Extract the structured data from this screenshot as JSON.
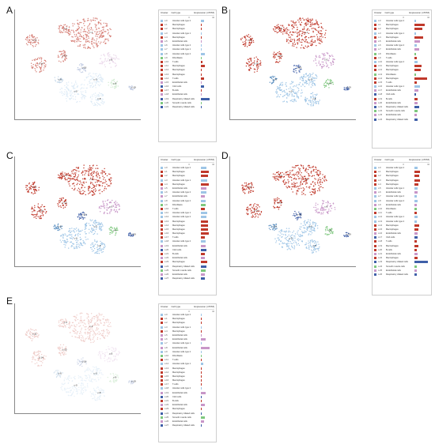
{
  "panels": [
    {
      "letter": "A",
      "legend_header": {
        "cluster": "Cluster",
        "cell_type": "Cell type",
        "expression": "Expression (nTPM)",
        "scale_min": "0",
        "scale_max": "10"
      },
      "rows": [
        {
          "id": "c-0",
          "type": "Alveolar cells type 2",
          "color": "#9ec5e6",
          "val": 0.25
        },
        {
          "id": "c-1",
          "type": "Macrophages",
          "color": "#c0392b",
          "val": 0.02
        },
        {
          "id": "c-2",
          "type": "Macrophages",
          "color": "#c0392b",
          "val": 0.02
        },
        {
          "id": "c-3",
          "type": "Alveolar cells type 1",
          "color": "#9ec5e6",
          "val": 0.03
        },
        {
          "id": "c-4",
          "type": "Macrophages",
          "color": "#c0392b",
          "val": 0.02
        },
        {
          "id": "c-5",
          "type": "Endothelial cells",
          "color": "#c896c8",
          "val": 0.05
        },
        {
          "id": "c-6",
          "type": "Alveolar cells type 2",
          "color": "#9ec5e6",
          "val": 0.02
        },
        {
          "id": "c-7",
          "type": "Alveolar cells type 1",
          "color": "#9ec5e6",
          "val": 0.03
        },
        {
          "id": "c-8",
          "type": "Alveolar cells type 2",
          "color": "#9ec5e6",
          "val": 0.28
        },
        {
          "id": "c-9",
          "type": "Fibroblasts",
          "color": "#7ec87e",
          "val": 0.03
        },
        {
          "id": "c-10",
          "type": "T-cells",
          "color": "#c0392b",
          "val": 0.12
        },
        {
          "id": "c-11",
          "type": "Macrophages",
          "color": "#c0392b",
          "val": 0.28
        },
        {
          "id": "c-12",
          "type": "Macrophages",
          "color": "#c0392b",
          "val": 0.02
        },
        {
          "id": "c-13",
          "type": "Macrophages",
          "color": "#c0392b",
          "val": 0.02
        },
        {
          "id": "c-14",
          "type": "T-cells",
          "color": "#c0392b",
          "val": 0.22
        },
        {
          "id": "c-15",
          "type": "Endothelial cells",
          "color": "#c896c8",
          "val": 0.02
        },
        {
          "id": "c-16",
          "type": "Club cells",
          "color": "#3f5fa8",
          "val": 0.25
        },
        {
          "id": "c-17",
          "type": "B-cells",
          "color": "#c0392b",
          "val": 0.03
        },
        {
          "id": "c-18",
          "type": "Endothelial cells",
          "color": "#c896c8",
          "val": 0.02
        },
        {
          "id": "c-19",
          "type": "Respiratory ciliated cells",
          "color": "#3f5fa8",
          "val": 0.62
        },
        {
          "id": "c-20",
          "type": "Smooth muscle cells",
          "color": "#7ec87e",
          "val": 0.02
        },
        {
          "id": "c-21",
          "type": "Respiratory ciliated cells",
          "color": "#3f5fa8",
          "val": 0.04
        }
      ]
    },
    {
      "letter": "B",
      "legend_header": {
        "cluster": "Cluster",
        "cell_type": "Cell type",
        "expression": "Expression (nTPM)",
        "scale_min": "0",
        "scale_max": "10"
      },
      "rows": [
        {
          "id": "c-0",
          "type": "Alveolar cells type 2",
          "color": "#9ec5e6",
          "val": 0.12
        },
        {
          "id": "c-1",
          "type": "Macrophages",
          "color": "#c0392b",
          "val": 0.7
        },
        {
          "id": "c-2",
          "type": "Macrophages",
          "color": "#c0392b",
          "val": 0.55
        },
        {
          "id": "c-3",
          "type": "Alveolar cells type 1",
          "color": "#9ec5e6",
          "val": 0.1
        },
        {
          "id": "c-4",
          "type": "Macrophages",
          "color": "#c0392b",
          "val": 0.6
        },
        {
          "id": "c-5",
          "type": "Endothelial cells",
          "color": "#c896c8",
          "val": 0.35
        },
        {
          "id": "c-6",
          "type": "Alveolar cells type 2",
          "color": "#9ec5e6",
          "val": 0.15
        },
        {
          "id": "c-7",
          "type": "Endothelial cells",
          "color": "#c896c8",
          "val": 0.3
        },
        {
          "id": "c-8",
          "type": "Fibroblasts",
          "color": "#7ec87e",
          "val": 0.1
        },
        {
          "id": "c-9",
          "type": "T-cells",
          "color": "#c0392b",
          "val": 0.18
        },
        {
          "id": "c-10",
          "type": "Alveolar cells type 2",
          "color": "#9ec5e6",
          "val": 0.2
        },
        {
          "id": "c-11",
          "type": "Macrophages",
          "color": "#c0392b",
          "val": 0.45
        },
        {
          "id": "c-12",
          "type": "Macrophages",
          "color": "#c0392b",
          "val": 0.4
        },
        {
          "id": "c-13",
          "type": "Fibroblasts",
          "color": "#7ec87e",
          "val": 0.08
        },
        {
          "id": "c-14",
          "type": "Macrophages",
          "color": "#c0392b",
          "val": 0.85
        },
        {
          "id": "c-15",
          "type": "T-cells",
          "color": "#c0392b",
          "val": 0.15
        },
        {
          "id": "c-16",
          "type": "Alveolar cells type 1",
          "color": "#9ec5e6",
          "val": 0.35
        },
        {
          "id": "c-17",
          "type": "Endothelial cells",
          "color": "#c896c8",
          "val": 0.25
        },
        {
          "id": "c-18",
          "type": "Club cells",
          "color": "#3f5fa8",
          "val": 0.12
        },
        {
          "id": "c-19",
          "type": "B-cells",
          "color": "#c0392b",
          "val": 0.2
        },
        {
          "id": "c-20",
          "type": "Endothelial cells",
          "color": "#c896c8",
          "val": 0.22
        },
        {
          "id": "c-21",
          "type": "Respiratory ciliated cells",
          "color": "#3f5fa8",
          "val": 0.3
        },
        {
          "id": "c-22",
          "type": "Smooth muscle cells",
          "color": "#7ec87e",
          "val": 0.2
        },
        {
          "id": "c-23",
          "type": "Endothelial cells",
          "color": "#c896c8",
          "val": 0.15
        },
        {
          "id": "c-24",
          "type": "Respiratory ciliated cells",
          "color": "#3f5fa8",
          "val": 0.2
        }
      ]
    },
    {
      "letter": "C",
      "legend_header": {
        "cluster": "Cluster",
        "cell_type": "Cell type",
        "expression": "Expression (nTPM)",
        "scale_min": "0",
        "scale_max": "10"
      },
      "rows": [
        {
          "id": "c-0",
          "type": "Alveolar cells type 2",
          "color": "#9ec5e6",
          "val": 0.4
        },
        {
          "id": "c-1",
          "type": "Macrophages",
          "color": "#c0392b",
          "val": 0.6
        },
        {
          "id": "c-2",
          "type": "Macrophages",
          "color": "#c0392b",
          "val": 0.55
        },
        {
          "id": "c-3",
          "type": "Alveolar cells type 1",
          "color": "#9ec5e6",
          "val": 0.45
        },
        {
          "id": "c-4",
          "type": "Macrophages",
          "color": "#c0392b",
          "val": 0.6
        },
        {
          "id": "c-5",
          "type": "Endothelial cells",
          "color": "#c896c8",
          "val": 0.4
        },
        {
          "id": "c-6",
          "type": "Alveolar cells type 2",
          "color": "#9ec5e6",
          "val": 0.42
        },
        {
          "id": "c-7",
          "type": "Endothelial cells",
          "color": "#c896c8",
          "val": 0.3
        },
        {
          "id": "c-8",
          "type": "Alveolar cells type 2",
          "color": "#9ec5e6",
          "val": 0.38
        },
        {
          "id": "c-9",
          "type": "Fibroblasts",
          "color": "#7ec87e",
          "val": 0.35
        },
        {
          "id": "c-10",
          "type": "T-cells",
          "color": "#c0392b",
          "val": 0.3
        },
        {
          "id": "c-11",
          "type": "Alveolar cells type 1",
          "color": "#9ec5e6",
          "val": 0.45
        },
        {
          "id": "c-12",
          "type": "Alveolar cells type 2",
          "color": "#9ec5e6",
          "val": 0.4
        },
        {
          "id": "c-13",
          "type": "Macrophages",
          "color": "#c0392b",
          "val": 0.55
        },
        {
          "id": "c-14",
          "type": "Macrophages",
          "color": "#c0392b",
          "val": 0.5
        },
        {
          "id": "c-15",
          "type": "Macrophages",
          "color": "#c0392b",
          "val": 0.52
        },
        {
          "id": "c-16",
          "type": "Macrophages",
          "color": "#c0392b",
          "val": 0.6
        },
        {
          "id": "c-17",
          "type": "T-cells",
          "color": "#c0392b",
          "val": 0.3
        },
        {
          "id": "c-18",
          "type": "Alveolar cells type 2",
          "color": "#9ec5e6",
          "val": 0.35
        },
        {
          "id": "c-19",
          "type": "Endothelial cells",
          "color": "#c896c8",
          "val": 0.35
        },
        {
          "id": "c-20",
          "type": "Club cells",
          "color": "#3f5fa8",
          "val": 0.4
        },
        {
          "id": "c-21",
          "type": "B-cells",
          "color": "#c0392b",
          "val": 0.3
        },
        {
          "id": "c-22",
          "type": "Endothelial cells",
          "color": "#c896c8",
          "val": 0.32
        },
        {
          "id": "c-23",
          "type": "Macrophages",
          "color": "#c0392b",
          "val": 0.45
        },
        {
          "id": "c-24",
          "type": "Respiratory ciliated cells",
          "color": "#3f5fa8",
          "val": 0.4
        },
        {
          "id": "c-25",
          "type": "Smooth muscle cells",
          "color": "#7ec87e",
          "val": 0.35
        },
        {
          "id": "c-26",
          "type": "Endothelial cells",
          "color": "#c896c8",
          "val": 0.3
        },
        {
          "id": "c-27",
          "type": "Respiratory ciliated cells",
          "color": "#3f5fa8",
          "val": 0.3
        }
      ]
    },
    {
      "letter": "D",
      "legend_header": {
        "cluster": "Cluster",
        "cell_type": "Cell type",
        "expression": "Expression (nTPM)",
        "scale_min": "0",
        "scale_max": "10"
      },
      "rows": [
        {
          "id": "c-0",
          "type": "Alveolar cells type 2",
          "color": "#9ec5e6",
          "val": 0.2
        },
        {
          "id": "c-1",
          "type": "Macrophages",
          "color": "#c0392b",
          "val": 0.35
        },
        {
          "id": "c-2",
          "type": "Macrophages",
          "color": "#c0392b",
          "val": 0.3
        },
        {
          "id": "c-3",
          "type": "Macrophages",
          "color": "#c0392b",
          "val": 0.35
        },
        {
          "id": "c-4",
          "type": "Macrophages",
          "color": "#c0392b",
          "val": 0.28
        },
        {
          "id": "c-5",
          "type": "Alveolar cells type 1",
          "color": "#9ec5e6",
          "val": 0.22
        },
        {
          "id": "c-6",
          "type": "Endothelial cells",
          "color": "#c896c8",
          "val": 0.2
        },
        {
          "id": "c-7",
          "type": "Alveolar cells type 2",
          "color": "#9ec5e6",
          "val": 0.18
        },
        {
          "id": "c-8",
          "type": "Alveolar cells type 2",
          "color": "#9ec5e6",
          "val": 0.2
        },
        {
          "id": "c-9",
          "type": "Endothelial cells",
          "color": "#c896c8",
          "val": 0.15
        },
        {
          "id": "c-10",
          "type": "Fibroblasts",
          "color": "#7ec87e",
          "val": 0.15
        },
        {
          "id": "c-11",
          "type": "T-cells",
          "color": "#c0392b",
          "val": 0.18
        },
        {
          "id": "c-12",
          "type": "Alveolar cells type 1",
          "color": "#9ec5e6",
          "val": 0.2
        },
        {
          "id": "c-13",
          "type": "Alveolar cells type 2",
          "color": "#9ec5e6",
          "val": 0.16
        },
        {
          "id": "c-14",
          "type": "Macrophages",
          "color": "#c0392b",
          "val": 0.3
        },
        {
          "id": "c-15",
          "type": "Macrophages",
          "color": "#c0392b",
          "val": 0.25
        },
        {
          "id": "c-16",
          "type": "Endothelial cells",
          "color": "#c896c8",
          "val": 0.2
        },
        {
          "id": "c-17",
          "type": "Club cells",
          "color": "#3f5fa8",
          "val": 0.2
        },
        {
          "id": "c-18",
          "type": "T-cells",
          "color": "#c0392b",
          "val": 0.15
        },
        {
          "id": "c-19",
          "type": "Macrophages",
          "color": "#c0392b",
          "val": 0.25
        },
        {
          "id": "c-20",
          "type": "B-cells",
          "color": "#c0392b",
          "val": 0.15
        },
        {
          "id": "c-21",
          "type": "Endothelial cells",
          "color": "#c896c8",
          "val": 0.2
        },
        {
          "id": "c-22",
          "type": "Macrophages",
          "color": "#c0392b",
          "val": 0.22
        },
        {
          "id": "c-23",
          "type": "Respiratory ciliated cells",
          "color": "#3f5fa8",
          "val": 0.9
        },
        {
          "id": "c-24",
          "type": "Smooth muscle cells",
          "color": "#7ec87e",
          "val": 0.18
        },
        {
          "id": "c-25",
          "type": "Endothelial cells",
          "color": "#c896c8",
          "val": 0.15
        },
        {
          "id": "c-26",
          "type": "Respiratory ciliated cells",
          "color": "#3f5fa8",
          "val": 0.18
        }
      ]
    },
    {
      "letter": "E",
      "legend_header": {
        "cluster": "Cluster",
        "cell_type": "Cell type",
        "expression": "Expression (nTPM)",
        "scale_min": "0",
        "scale_max": "10"
      },
      "rows": [
        {
          "id": "c-0",
          "type": "Alveolar cells type 2",
          "color": "#9ec5e6",
          "val": 0.02
        },
        {
          "id": "c-1",
          "type": "Macrophages",
          "color": "#c0392b",
          "val": 0.02
        },
        {
          "id": "c-2",
          "type": "Macrophages",
          "color": "#c0392b",
          "val": 0.02
        },
        {
          "id": "c-3",
          "type": "Alveolar cells type 1",
          "color": "#9ec5e6",
          "val": 0.02
        },
        {
          "id": "c-4",
          "type": "Macrophages",
          "color": "#c0392b",
          "val": 0.02
        },
        {
          "id": "c-5",
          "type": "Endothelial cells",
          "color": "#c896c8",
          "val": 0.02
        },
        {
          "id": "c-6",
          "type": "Endothelial cells",
          "color": "#c896c8",
          "val": 0.35
        },
        {
          "id": "c-7",
          "type": "Alveolar cells type 1",
          "color": "#9ec5e6",
          "val": 0.02
        },
        {
          "id": "c-8",
          "type": "Endothelial cells",
          "color": "#c896c8",
          "val": 0.62
        },
        {
          "id": "c-9",
          "type": "Alveolar cells type 2",
          "color": "#9ec5e6",
          "val": 0.02
        },
        {
          "id": "c-10",
          "type": "Fibroblasts",
          "color": "#7ec87e",
          "val": 0.02
        },
        {
          "id": "c-11",
          "type": "T-cells",
          "color": "#c0392b",
          "val": 0.02
        },
        {
          "id": "c-12",
          "type": "Alveolar cells type 1",
          "color": "#9ec5e6",
          "val": 0.2
        },
        {
          "id": "c-13",
          "type": "Macrophages",
          "color": "#c0392b",
          "val": 0.02
        },
        {
          "id": "c-14",
          "type": "Macrophages",
          "color": "#c0392b",
          "val": 0.02
        },
        {
          "id": "c-15",
          "type": "Macrophages",
          "color": "#c0392b",
          "val": 0.02
        },
        {
          "id": "c-16",
          "type": "Macrophages",
          "color": "#c0392b",
          "val": 0.02
        },
        {
          "id": "c-17",
          "type": "T-cells",
          "color": "#c0392b",
          "val": 0.02
        },
        {
          "id": "c-18",
          "type": "Alveolar cells type 2",
          "color": "#9ec5e6",
          "val": 0.02
        },
        {
          "id": "c-19",
          "type": "Endothelial cells",
          "color": "#c896c8",
          "val": 0.35
        },
        {
          "id": "c-20",
          "type": "Club cells",
          "color": "#3f5fa8",
          "val": 0.02
        },
        {
          "id": "c-21",
          "type": "B-cells",
          "color": "#c0392b",
          "val": 0.02
        },
        {
          "id": "c-22",
          "type": "Endothelial cells",
          "color": "#c896c8",
          "val": 0.3
        },
        {
          "id": "c-23",
          "type": "Macrophages",
          "color": "#c0392b",
          "val": 0.02
        },
        {
          "id": "c-24",
          "type": "Respiratory ciliated cells",
          "color": "#3f5fa8",
          "val": 0.05
        },
        {
          "id": "c-25",
          "type": "Smooth muscle cells",
          "color": "#7ec87e",
          "val": 0.3
        },
        {
          "id": "c-26",
          "type": "Endothelial cells",
          "color": "#c896c8",
          "val": 0.25
        },
        {
          "id": "c-27",
          "type": "Respiratory ciliated cells",
          "color": "#3f5fa8",
          "val": 0.05
        }
      ]
    }
  ],
  "colors": {
    "red": "#c0392b",
    "blue": "#5a8fc1",
    "light_blue": "#9ec5e6",
    "purple": "#c896c8",
    "green": "#7ec87e",
    "navy": "#3f5fa8"
  }
}
